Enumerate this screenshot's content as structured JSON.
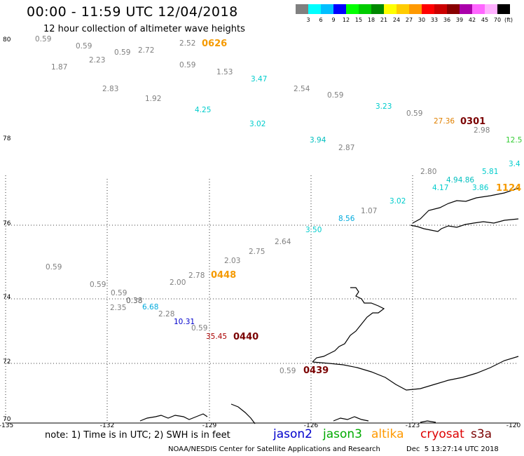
{
  "title": "00:00 - 11:59 UTC 12/04/2018",
  "subtitle": "12 hour collection of altimeter wave heights",
  "scale": {
    "colors": [
      "#808080",
      "#00ffff",
      "#00bfff",
      "#0000ff",
      "#00ff00",
      "#00cc00",
      "#008800",
      "#ffff00",
      "#ffcc00",
      "#ff9900",
      "#ff0000",
      "#cc0000",
      "#880000",
      "#aa00aa",
      "#ff66ff",
      "#ffb0ff",
      "#000000"
    ],
    "labels": [
      "3",
      "6",
      "9",
      "12",
      "15",
      "18",
      "21",
      "24",
      "27",
      "30",
      "33",
      "36",
      "39",
      "42",
      "45",
      "70"
    ],
    "unit": "(ft)"
  },
  "lat_labels": [
    "80",
    "78",
    "76",
    "74",
    "72",
    "70"
  ],
  "lon_labels": [
    "-135",
    "-132",
    "-129",
    "-126",
    "-123",
    "-120"
  ],
  "observations": [
    {
      "text": "0.59",
      "color": "#808080"
    },
    {
      "text": "0.59",
      "color": "#808080"
    },
    {
      "text": "0.59",
      "color": "#808080"
    },
    {
      "text": "2.72",
      "color": "#808080"
    },
    {
      "text": "2.52",
      "color": "#808080"
    },
    {
      "text": "1.87",
      "color": "#808080"
    },
    {
      "text": "2.23",
      "color": "#808080"
    },
    {
      "text": "0.59",
      "color": "#808080"
    },
    {
      "text": "1.53",
      "color": "#808080"
    },
    {
      "text": "3.47",
      "color": "#00cccc"
    },
    {
      "text": "2.83",
      "color": "#808080"
    },
    {
      "text": "1.92",
      "color": "#808080"
    },
    {
      "text": "2.54",
      "color": "#808080"
    },
    {
      "text": "0.59",
      "color": "#808080"
    },
    {
      "text": "4.25",
      "color": "#00cccc"
    },
    {
      "text": "3.23",
      "color": "#00cccc"
    },
    {
      "text": "3.02",
      "color": "#00cccc"
    },
    {
      "text": "0.59",
      "color": "#808080"
    },
    {
      "text": "27.36",
      "color": "#e08000"
    },
    {
      "text": "2.98",
      "color": "#808080"
    },
    {
      "text": "3.94",
      "color": "#00bfbf"
    },
    {
      "text": "2.87",
      "color": "#808080"
    },
    {
      "text": "12.5",
      "color": "#33cc33"
    },
    {
      "text": "3.4",
      "color": "#00cccc"
    },
    {
      "text": "2.80",
      "color": "#808080"
    },
    {
      "text": "5.81",
      "color": "#00cccc"
    },
    {
      "text": "4.94.86",
      "color": "#00bfbf"
    },
    {
      "text": "4.17",
      "color": "#00cccc"
    },
    {
      "text": "3.86",
      "color": "#00cccc"
    },
    {
      "text": "3.02",
      "color": "#00cccc"
    },
    {
      "text": "1.07",
      "color": "#808080"
    },
    {
      "text": "8.56",
      "color": "#00aadd"
    },
    {
      "text": "3.50",
      "color": "#00cccc"
    },
    {
      "text": "2.64",
      "color": "#808080"
    },
    {
      "text": "2.75",
      "color": "#808080"
    },
    {
      "text": "2.03",
      "color": "#808080"
    },
    {
      "text": "0.59",
      "color": "#808080"
    },
    {
      "text": "2.78",
      "color": "#808080"
    },
    {
      "text": "2.00",
      "color": "#808080"
    },
    {
      "text": "0.59",
      "color": "#808080"
    },
    {
      "text": "0.59",
      "color": "#808080"
    },
    {
      "text": "0.38",
      "color": "#555555"
    },
    {
      "text": "2.35",
      "color": "#808080"
    },
    {
      "text": "6.68",
      "color": "#00aadd"
    },
    {
      "text": "2.28",
      "color": "#808080"
    },
    {
      "text": "10.31",
      "color": "#0000cc"
    },
    {
      "text": "0.59",
      "color": "#808080"
    },
    {
      "text": "35.45",
      "color": "#aa0000"
    },
    {
      "text": "0.59",
      "color": "#808080"
    }
  ],
  "time_labels": [
    {
      "text": "0626",
      "color": "#f59a00"
    },
    {
      "text": "0301",
      "color": "#7a0000"
    },
    {
      "text": "1124",
      "color": "#f59a00"
    },
    {
      "text": "0448",
      "color": "#f59a00"
    },
    {
      "text": "0440",
      "color": "#7a0000"
    },
    {
      "text": "0439",
      "color": "#7a0000"
    }
  ],
  "note": "note: 1) Time is in UTC; 2) SWH is in feet",
  "legend": [
    {
      "label": "jason2",
      "color": "#0000cc"
    },
    {
      "label": "jason3",
      "color": "#00aa00"
    },
    {
      "label": "altika",
      "color": "#ff9900"
    },
    {
      "label": "cryosat",
      "color": "#dd0000"
    },
    {
      "label": "s3a",
      "color": "#7a0000"
    }
  ],
  "credit": "NOAA/NESDIS Center for Satellite Applications and Research",
  "generated": "Dec  5 13:27:14 UTC 2018"
}
